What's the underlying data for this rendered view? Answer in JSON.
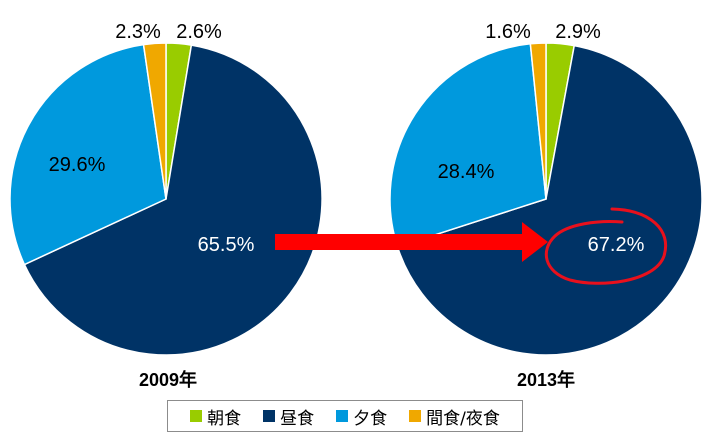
{
  "chart_data": {
    "type": "pie",
    "categories": [
      "朝食",
      "昼食",
      "夕食",
      "間食/夜食"
    ],
    "colors": [
      "#99cc00",
      "#003366",
      "#0099dd",
      "#f0a800"
    ],
    "charts": [
      {
        "title": "2009年",
        "values": [
          2.6,
          65.5,
          29.6,
          2.3
        ],
        "labels": [
          "2.6%",
          "65.5%",
          "29.6%",
          "2.3%"
        ]
      },
      {
        "title": "2013年",
        "values": [
          2.9,
          67.2,
          28.4,
          1.6
        ],
        "labels": [
          "2.9%",
          "67.2%",
          "28.4%",
          "1.6%"
        ],
        "highlight": "67.2%"
      }
    ],
    "legend_position": "bottom"
  }
}
